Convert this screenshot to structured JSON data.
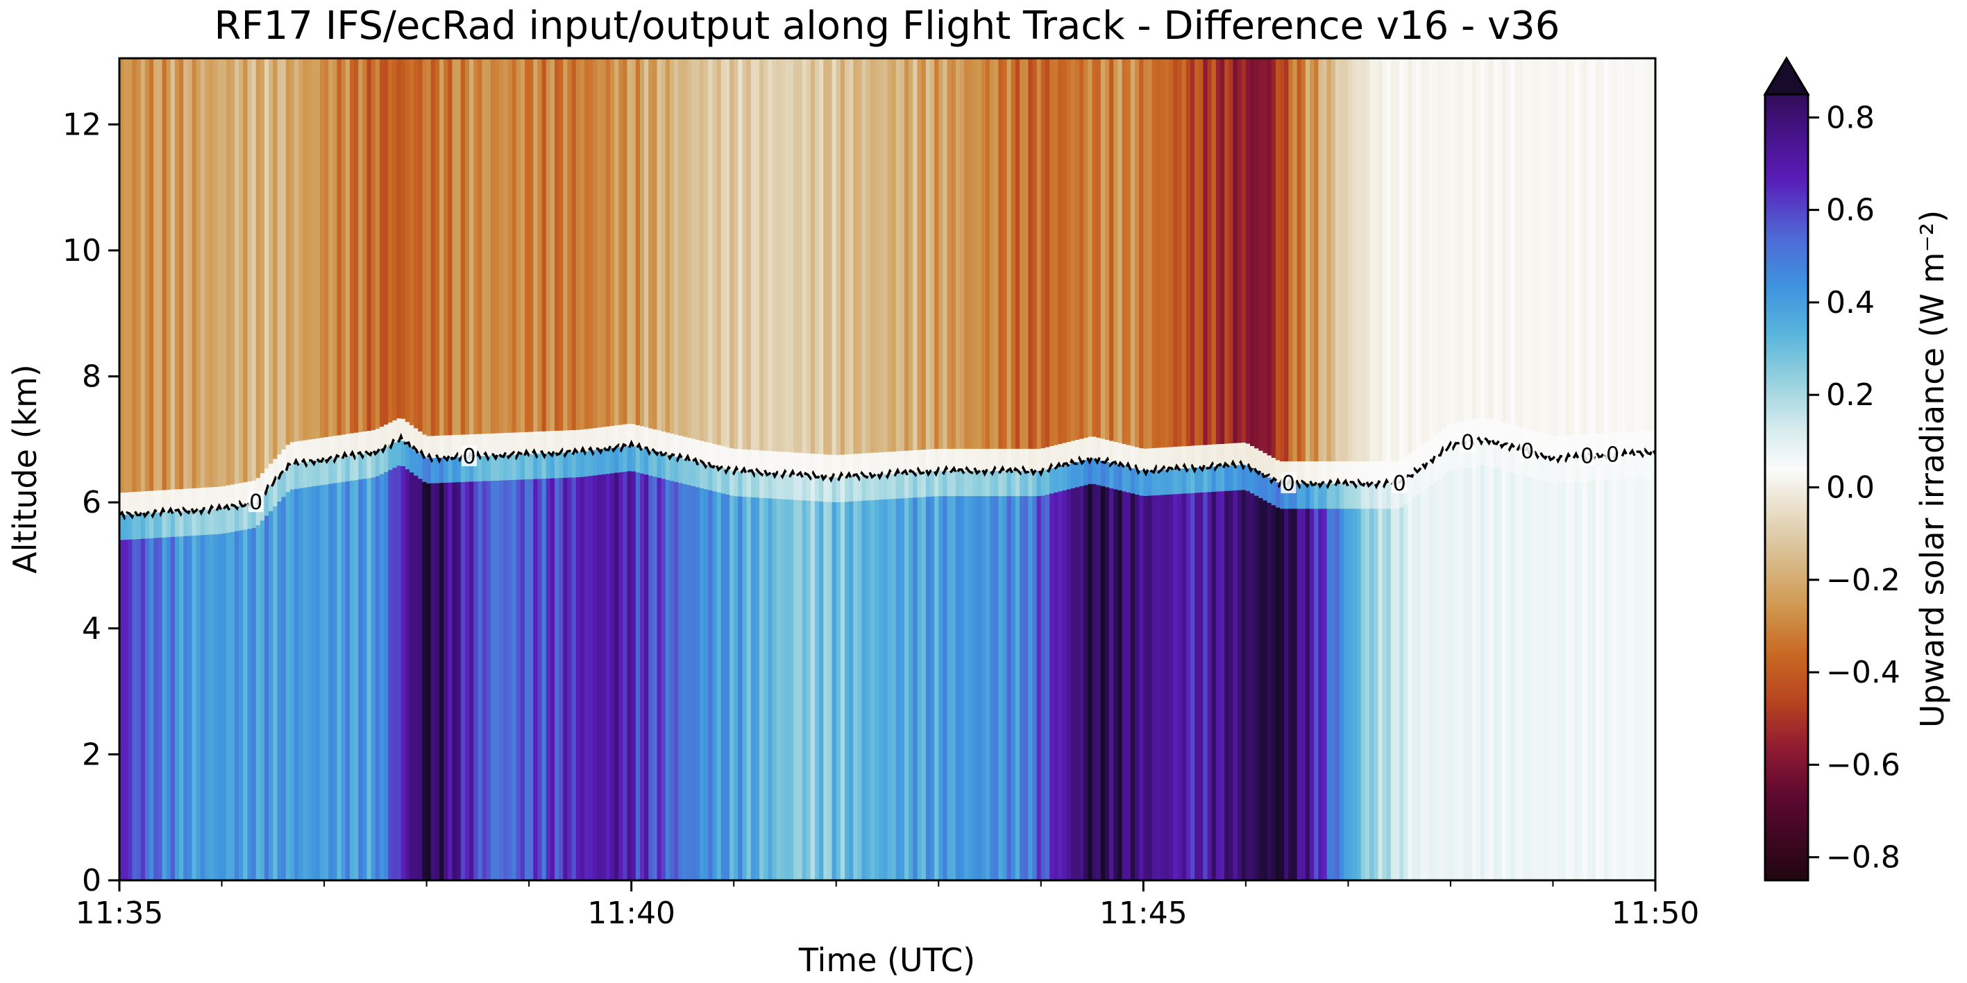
{
  "chart_data": {
    "type": "heatmap",
    "title": "RF17 IFS/ecRad input/output along Flight Track - Difference v16 - v36",
    "xlabel": "Time (UTC)",
    "ylabel": "Altitude (km)",
    "colorbar_label": "Upward solar irradiance (W m⁻²)",
    "xlim": [
      "11:35",
      "11:50"
    ],
    "ylim": [
      0,
      13.05
    ],
    "xticks": [
      "11:35",
      "11:40",
      "11:45",
      "11:50"
    ],
    "yticks": [
      "0",
      "2",
      "4",
      "6",
      "8",
      "10",
      "12"
    ],
    "colorbar_ticks": [
      "−0.8",
      "−0.6",
      "−0.4",
      "−0.2",
      "0.0",
      "0.2",
      "0.4",
      "0.6",
      "0.8"
    ],
    "colorbar_range": [
      -0.85,
      0.85
    ],
    "colorbar_extend": "max",
    "colormap": [
      [
        -0.85,
        "#20060f"
      ],
      [
        -0.68,
        "#5c0830"
      ],
      [
        -0.58,
        "#8e1a32"
      ],
      [
        -0.48,
        "#b8441f"
      ],
      [
        -0.38,
        "#c96a24"
      ],
      [
        -0.28,
        "#d09a52"
      ],
      [
        -0.15,
        "#dcc7a0"
      ],
      [
        -0.05,
        "#efeadc"
      ],
      [
        0.0,
        "#fbfbfb"
      ],
      [
        0.08,
        "#d8ecee"
      ],
      [
        0.18,
        "#98d2de"
      ],
      [
        0.28,
        "#58b4dc"
      ],
      [
        0.38,
        "#3e92de"
      ],
      [
        0.48,
        "#4f6ad6"
      ],
      [
        0.6,
        "#5a1cb8"
      ],
      [
        0.72,
        "#40107a"
      ],
      [
        0.85,
        "#180a2a"
      ]
    ],
    "contour_level": 0,
    "contour_label": "0",
    "upper_layer": {
      "time": [
        "11:35:00",
        "11:36:30",
        "11:37:40",
        "11:38:30",
        "11:39:30",
        "11:40:45",
        "11:41:30",
        "11:43:00",
        "11:44:00",
        "11:44:50",
        "11:46:10",
        "11:46:30",
        "11:47:00",
        "11:47:20",
        "11:50:00"
      ],
      "value": [
        -0.3,
        -0.2,
        -0.42,
        -0.3,
        -0.35,
        -0.15,
        -0.12,
        -0.25,
        -0.4,
        -0.3,
        -0.62,
        -0.35,
        -0.1,
        -0.02,
        -0.01
      ]
    },
    "lower_layer": {
      "time": [
        "11:35:00",
        "11:35:12",
        "11:35:40",
        "11:37:30",
        "11:38:00",
        "11:38:40",
        "11:39:50",
        "11:40:40",
        "11:41:40",
        "11:42:30",
        "11:43:50",
        "11:44:30",
        "11:45:30",
        "11:46:20",
        "11:46:45",
        "11:47:10",
        "11:47:40",
        "11:50:00"
      ],
      "value": [
        0.6,
        0.5,
        0.35,
        0.35,
        0.82,
        0.45,
        0.65,
        0.4,
        0.2,
        0.3,
        0.4,
        0.8,
        0.6,
        0.85,
        0.55,
        0.2,
        0.04,
        0.02
      ]
    },
    "zero_contour": {
      "time": [
        "11:35:00",
        "11:36:00",
        "11:36:20",
        "11:36:40",
        "11:37:30",
        "11:37:45",
        "11:38:00",
        "11:39:30",
        "11:40:00",
        "11:40:30",
        "11:41:00",
        "11:42:00",
        "11:43:00",
        "11:44:00",
        "11:44:30",
        "11:45:00",
        "11:46:00",
        "11:46:20",
        "11:47:00",
        "11:47:30",
        "11:48:00",
        "11:48:20",
        "11:49:00",
        "11:50:00"
      ],
      "altitude_km": [
        5.8,
        5.9,
        6.0,
        6.6,
        6.8,
        7.0,
        6.7,
        6.8,
        6.9,
        6.7,
        6.5,
        6.4,
        6.5,
        6.5,
        6.7,
        6.5,
        6.6,
        6.3,
        6.3,
        6.3,
        6.9,
        7.0,
        6.7,
        6.8
      ]
    },
    "contour_label_times": [
      "11:36:20",
      "11:38:25",
      "11:46:25",
      "11:47:30",
      "11:48:10",
      "11:48:45",
      "11:49:20",
      "11:49:35"
    ]
  }
}
